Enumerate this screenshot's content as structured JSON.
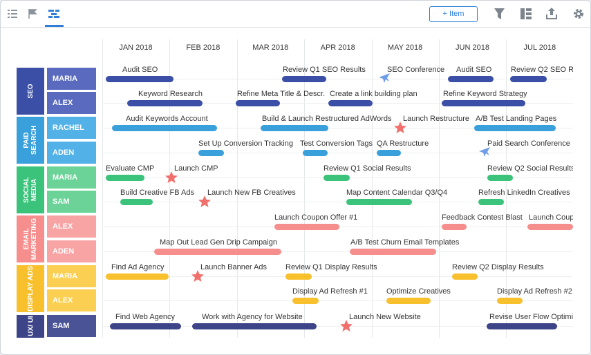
{
  "toolbar": {
    "add_item": "Item"
  },
  "months": [
    "JAN 2018",
    "FEB 2018",
    "MAR 2018",
    "APR 2018",
    "MAY 2018",
    "JUN 2018",
    "JUL 2018"
  ],
  "groups": [
    {
      "label": "SEO",
      "color": "#3c4fa6",
      "row_color": "#5a6bbf",
      "rows": [
        {
          "name": "MARIA",
          "items": [
            {
              "label": "Audit SEO",
              "kind": "bar"
            },
            {
              "label": "Review Q1 SEO Results",
              "kind": "bar"
            },
            {
              "label": "SEO Conference",
              "kind": "event"
            },
            {
              "label": "Audit SEO",
              "kind": "bar"
            },
            {
              "label": "Review Q2 SEO Re",
              "kind": "bar"
            }
          ]
        },
        {
          "name": "ALEX",
          "items": [
            {
              "label": "Keyword Research",
              "kind": "bar"
            },
            {
              "label": "Refine Meta Title & Descr.",
              "kind": "bar"
            },
            {
              "label": "Create a link building plan",
              "kind": "bar"
            },
            {
              "label": "Refine Keyword Strategy",
              "kind": "bar"
            }
          ]
        }
      ]
    },
    {
      "label": "PAID SEARCH",
      "color": "#3aa0dc",
      "row_color": "#52b2e8",
      "rows": [
        {
          "name": "RACHEL",
          "items": [
            {
              "label": "Audit Keywords Account",
              "kind": "bar"
            },
            {
              "label": "Build & Launch Restructured AdWords",
              "kind": "bar"
            },
            {
              "label": "Launch Restructure",
              "kind": "milestone"
            },
            {
              "label": "A/B Test Landing Pages",
              "kind": "bar"
            }
          ]
        },
        {
          "name": "ADEN",
          "items": [
            {
              "label": "Set Up Conversion Tracking",
              "kind": "bar"
            },
            {
              "label": "Test Conversion Tags",
              "kind": "bar"
            },
            {
              "label": "QA Restructure",
              "kind": "bar"
            },
            {
              "label": "Paid Search Conference",
              "kind": "event"
            }
          ]
        }
      ]
    },
    {
      "label": "SOCIAL MEDIA",
      "color": "#3bc27b",
      "row_color": "#6bd398",
      "rows": [
        {
          "name": "MARIA",
          "items": [
            {
              "label": "Evaluate CMP",
              "kind": "bar"
            },
            {
              "label": "Launch CMP",
              "kind": "milestone"
            },
            {
              "label": "Review Q1 Social Results",
              "kind": "bar"
            },
            {
              "label": "Review Q2 Social Results",
              "kind": "bar"
            }
          ]
        },
        {
          "name": "SAM",
          "items": [
            {
              "label": "Build Creative FB Ads",
              "kind": "bar"
            },
            {
              "label": "Launch New FB Creatives",
              "kind": "milestone"
            },
            {
              "label": "Map Content Calendar Q3/Q4",
              "kind": "bar"
            },
            {
              "label": "Refresh LinkedIn Creatives",
              "kind": "bar"
            }
          ]
        }
      ]
    },
    {
      "label": "EMAIL MARKETING",
      "color": "#f68e8e",
      "row_color": "#f9a4a4",
      "rows": [
        {
          "name": "ALEX",
          "items": [
            {
              "label": "Launch Coupon Offer #1",
              "kind": "bar"
            },
            {
              "label": "Feedback Contest Blast",
              "kind": "bar"
            },
            {
              "label": "Launch Coup",
              "kind": "bar"
            }
          ]
        },
        {
          "name": "ADEN",
          "items": [
            {
              "label": "Map Out Lead Gen Drip Campaign",
              "kind": "bar"
            },
            {
              "label": "A/B Test Churn Email Templates",
              "kind": "bar"
            }
          ]
        }
      ]
    },
    {
      "label": "DISPLAY ADS",
      "color": "#f8c02c",
      "row_color": "#fbcf52",
      "rows": [
        {
          "name": "MARIA",
          "items": [
            {
              "label": "Find Ad Agency",
              "kind": "bar"
            },
            {
              "label": "Launch Banner Ads",
              "kind": "milestone"
            },
            {
              "label": "Review Q1 Display Results",
              "kind": "bar"
            },
            {
              "label": "Review Q2 Display Results",
              "kind": "bar"
            }
          ]
        },
        {
          "name": "ALEX",
          "items": [
            {
              "label": "Display Ad Refresh #1",
              "kind": "bar"
            },
            {
              "label": "Optimize Creatives",
              "kind": "bar"
            },
            {
              "label": "Display Ad Refresh #2",
              "kind": "bar"
            }
          ]
        }
      ]
    },
    {
      "label": "UX/ UI",
      "color": "#3d4488",
      "row_color": "#4a5396",
      "rows": [
        {
          "name": "SAM",
          "items": [
            {
              "label": "Find Web Agency",
              "kind": "bar"
            },
            {
              "label": "Work with Agency for Website",
              "kind": "bar"
            },
            {
              "label": "Launch New Website",
              "kind": "milestone"
            },
            {
              "label": "Revise User Flow Optimi",
              "kind": "bar"
            }
          ]
        }
      ]
    }
  ]
}
